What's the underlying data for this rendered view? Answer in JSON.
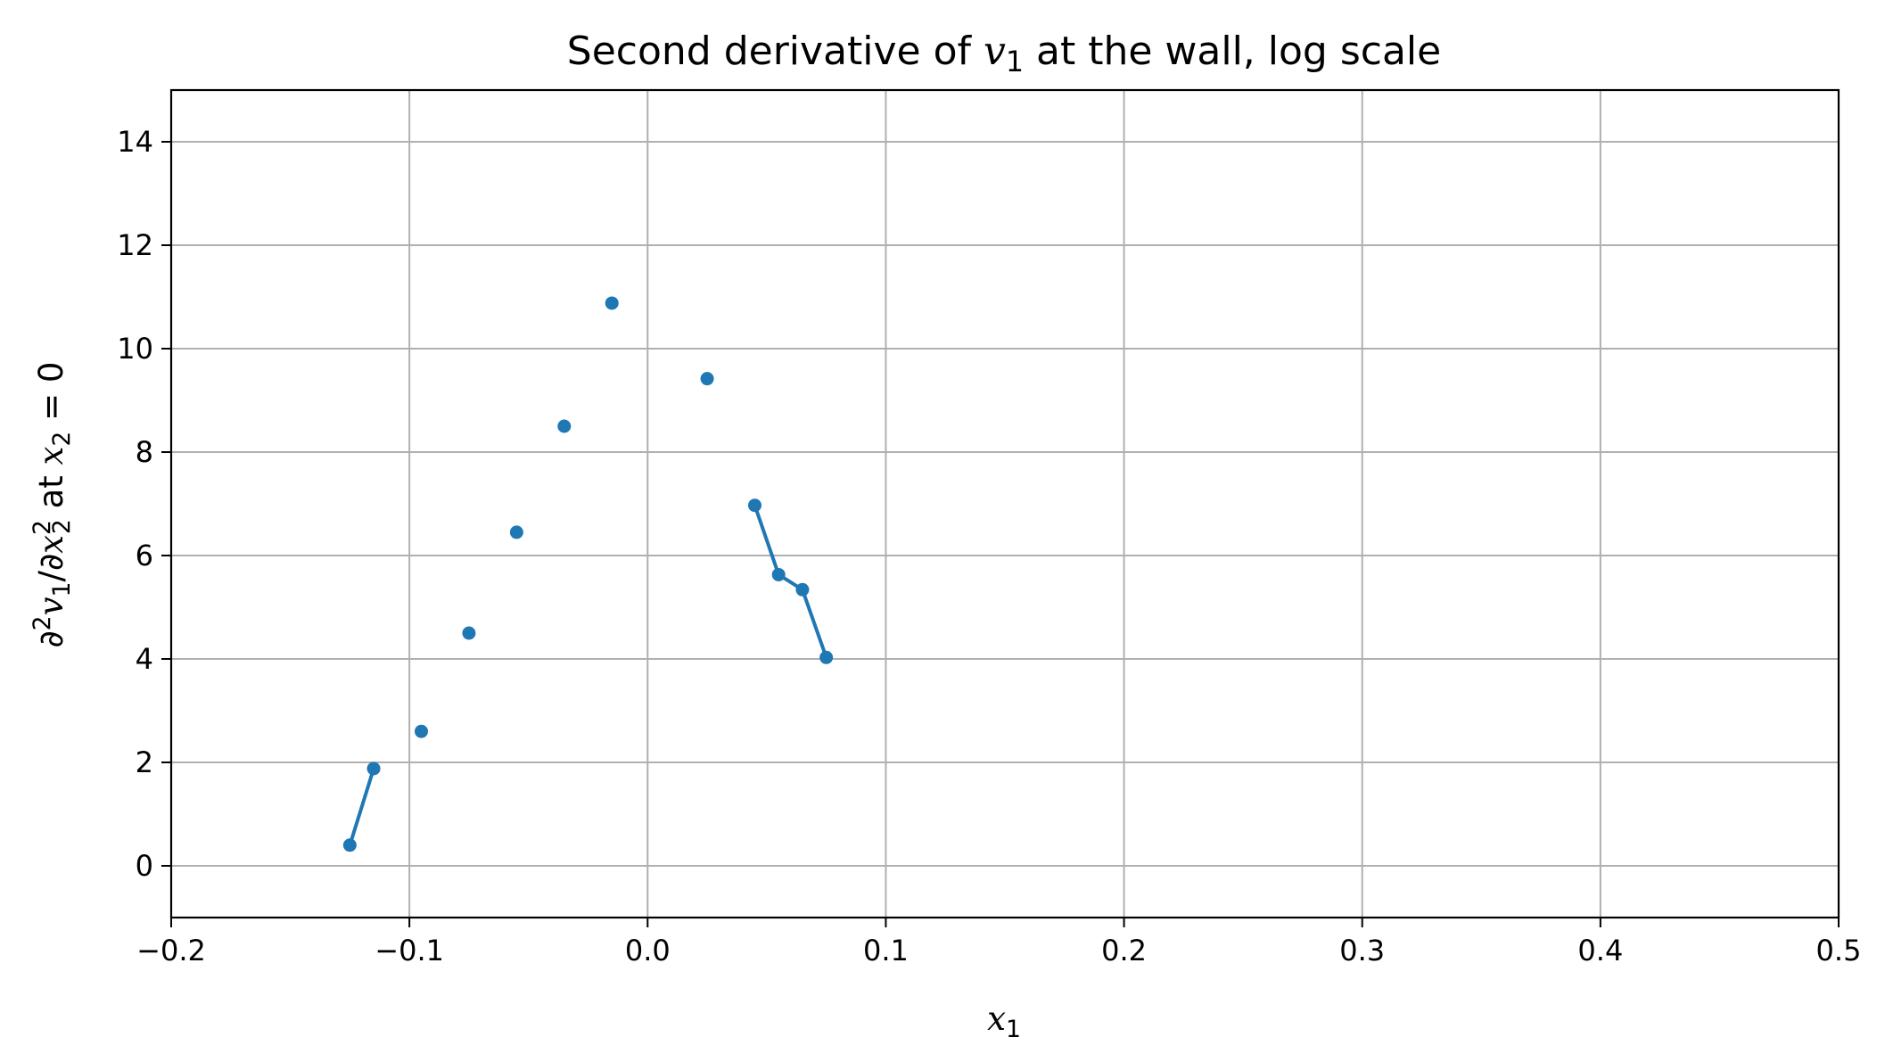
{
  "chart_data": {
    "type": "line",
    "title": {
      "prefix": "Second derivative of ",
      "var": "v",
      "var_sub": "1",
      "suffix": " at the wall, log scale"
    },
    "xlabel": {
      "var": "x",
      "sub": "1"
    },
    "ylabel": {
      "partial": "∂",
      "sup2": "2",
      "v": "v",
      "v_sub": "1",
      "slash": "/∂",
      "x": "x",
      "x_sub": "2",
      "x_sup": "2",
      "mid": " at ",
      "x2": "x",
      "x2_sub": "2",
      "eq": " = 0"
    },
    "xlim": [
      -0.2,
      0.5
    ],
    "ylim": [
      -1,
      15
    ],
    "xticks": [
      -0.2,
      -0.1,
      0.0,
      0.1,
      0.2,
      0.3,
      0.4,
      0.5
    ],
    "xtick_labels": [
      "−0.2",
      "−0.1",
      "0.0",
      "0.1",
      "0.2",
      "0.3",
      "0.4",
      "0.5"
    ],
    "yticks": [
      0,
      2,
      4,
      6,
      8,
      10,
      12,
      14
    ],
    "ytick_labels": [
      "0",
      "2",
      "4",
      "6",
      "8",
      "10",
      "12",
      "14"
    ],
    "grid": true,
    "series": [
      {
        "color": "#1f77b4",
        "x": [
          -0.125,
          -0.115,
          -0.095,
          -0.075,
          -0.055,
          -0.035,
          -0.015,
          0.025,
          0.045,
          0.055,
          0.065,
          0.075
        ],
        "y": [
          0.4,
          1.88,
          2.6,
          4.5,
          6.45,
          8.5,
          10.88,
          9.42,
          6.97,
          5.63,
          5.34,
          4.03
        ],
        "segments": [
          [
            0,
            1
          ],
          [
            8,
            9
          ],
          [
            9,
            10
          ],
          [
            10,
            11
          ]
        ]
      }
    ]
  }
}
